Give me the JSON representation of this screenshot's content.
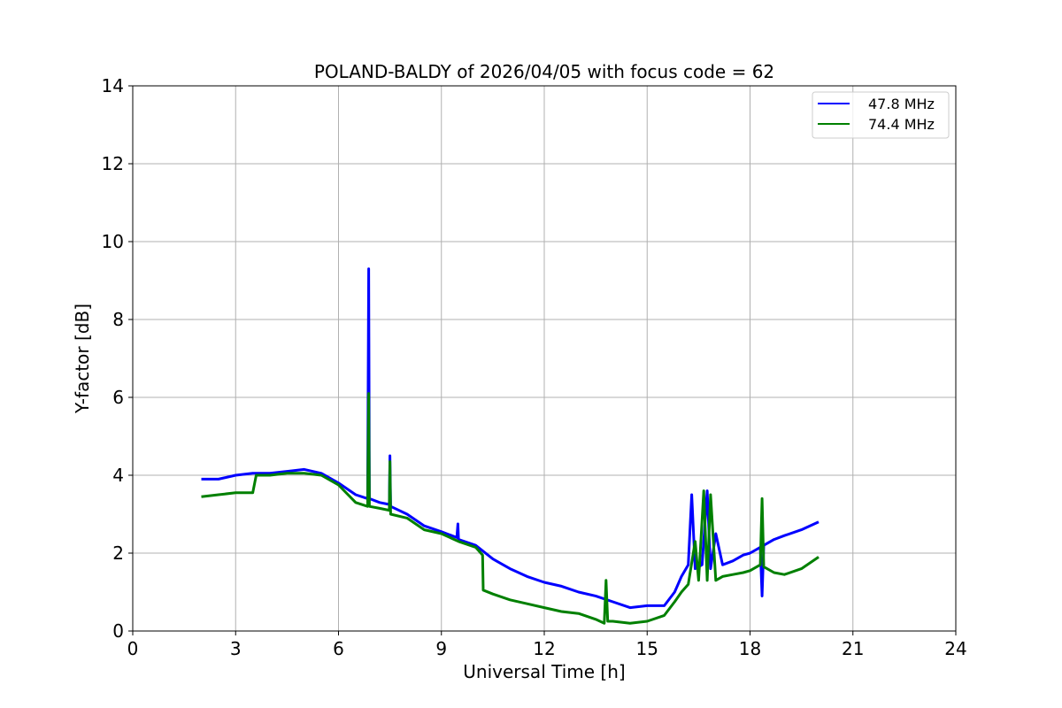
{
  "chart_data": {
    "type": "line",
    "title": "POLAND-BALDY of 2026/04/05 with focus code = 62",
    "xlabel": "Universal Time [h]",
    "ylabel": "Y-factor [dB]",
    "xlim": [
      0,
      24
    ],
    "ylim": [
      0,
      14
    ],
    "xticks": [
      0,
      3,
      6,
      9,
      12,
      15,
      18,
      21,
      24
    ],
    "yticks": [
      0,
      2,
      4,
      6,
      8,
      10,
      12,
      14
    ],
    "grid": true,
    "legend_position": "top-right",
    "series": [
      {
        "name": "47.8 MHz",
        "color": "#0000ff",
        "points": [
          [
            2.0,
            3.9
          ],
          [
            2.5,
            3.9
          ],
          [
            3.0,
            4.0
          ],
          [
            3.5,
            4.05
          ],
          [
            4.0,
            4.05
          ],
          [
            4.5,
            4.1
          ],
          [
            5.0,
            4.15
          ],
          [
            5.5,
            4.05
          ],
          [
            6.0,
            3.8
          ],
          [
            6.5,
            3.5
          ],
          [
            6.85,
            3.4
          ],
          [
            6.88,
            9.3
          ],
          [
            6.9,
            3.4
          ],
          [
            7.2,
            3.3
          ],
          [
            7.48,
            3.25
          ],
          [
            7.5,
            4.5
          ],
          [
            7.52,
            3.2
          ],
          [
            8.0,
            3.0
          ],
          [
            8.5,
            2.7
          ],
          [
            9.0,
            2.55
          ],
          [
            9.45,
            2.4
          ],
          [
            9.48,
            2.75
          ],
          [
            9.5,
            2.35
          ],
          [
            10.0,
            2.2
          ],
          [
            10.5,
            1.85
          ],
          [
            11.0,
            1.6
          ],
          [
            11.5,
            1.4
          ],
          [
            12.0,
            1.25
          ],
          [
            12.5,
            1.15
          ],
          [
            13.0,
            1.0
          ],
          [
            13.5,
            0.9
          ],
          [
            14.0,
            0.75
          ],
          [
            14.5,
            0.6
          ],
          [
            15.0,
            0.65
          ],
          [
            15.5,
            0.65
          ],
          [
            15.8,
            1.0
          ],
          [
            16.0,
            1.4
          ],
          [
            16.2,
            1.7
          ],
          [
            16.3,
            3.5
          ],
          [
            16.4,
            1.6
          ],
          [
            16.6,
            1.7
          ],
          [
            16.75,
            3.6
          ],
          [
            16.85,
            1.6
          ],
          [
            17.0,
            2.5
          ],
          [
            17.2,
            1.7
          ],
          [
            17.5,
            1.8
          ],
          [
            17.8,
            1.95
          ],
          [
            18.0,
            2.0
          ],
          [
            18.3,
            2.15
          ],
          [
            18.35,
            0.9
          ],
          [
            18.4,
            2.2
          ],
          [
            18.7,
            2.35
          ],
          [
            19.0,
            2.45
          ],
          [
            19.5,
            2.6
          ],
          [
            20.0,
            2.8
          ]
        ]
      },
      {
        "name": "74.4 MHz",
        "color": "#008000",
        "points": [
          [
            2.0,
            3.45
          ],
          [
            2.5,
            3.5
          ],
          [
            3.0,
            3.55
          ],
          [
            3.5,
            3.55
          ],
          [
            3.6,
            4.0
          ],
          [
            4.0,
            4.0
          ],
          [
            4.5,
            4.05
          ],
          [
            5.0,
            4.05
          ],
          [
            5.5,
            4.0
          ],
          [
            6.0,
            3.75
          ],
          [
            6.5,
            3.3
          ],
          [
            6.85,
            3.2
          ],
          [
            6.88,
            6.1
          ],
          [
            6.9,
            3.2
          ],
          [
            7.2,
            3.15
          ],
          [
            7.48,
            3.1
          ],
          [
            7.5,
            4.35
          ],
          [
            7.52,
            3.0
          ],
          [
            8.0,
            2.9
          ],
          [
            8.5,
            2.6
          ],
          [
            9.0,
            2.5
          ],
          [
            9.5,
            2.3
          ],
          [
            10.0,
            2.15
          ],
          [
            10.2,
            1.95
          ],
          [
            10.22,
            1.05
          ],
          [
            10.5,
            0.95
          ],
          [
            11.0,
            0.8
          ],
          [
            11.5,
            0.7
          ],
          [
            12.0,
            0.6
          ],
          [
            12.5,
            0.5
          ],
          [
            13.0,
            0.45
          ],
          [
            13.5,
            0.3
          ],
          [
            13.75,
            0.2
          ],
          [
            13.8,
            1.3
          ],
          [
            13.85,
            0.25
          ],
          [
            14.0,
            0.25
          ],
          [
            14.5,
            0.2
          ],
          [
            15.0,
            0.25
          ],
          [
            15.5,
            0.4
          ],
          [
            15.8,
            0.75
          ],
          [
            16.0,
            1.0
          ],
          [
            16.2,
            1.2
          ],
          [
            16.4,
            2.3
          ],
          [
            16.5,
            1.3
          ],
          [
            16.65,
            3.6
          ],
          [
            16.75,
            1.3
          ],
          [
            16.85,
            3.5
          ],
          [
            17.0,
            1.3
          ],
          [
            17.2,
            1.4
          ],
          [
            17.5,
            1.45
          ],
          [
            17.8,
            1.5
          ],
          [
            18.0,
            1.55
          ],
          [
            18.3,
            1.7
          ],
          [
            18.35,
            3.4
          ],
          [
            18.4,
            1.65
          ],
          [
            18.7,
            1.5
          ],
          [
            19.0,
            1.45
          ],
          [
            19.5,
            1.6
          ],
          [
            20.0,
            1.9
          ]
        ]
      }
    ]
  }
}
